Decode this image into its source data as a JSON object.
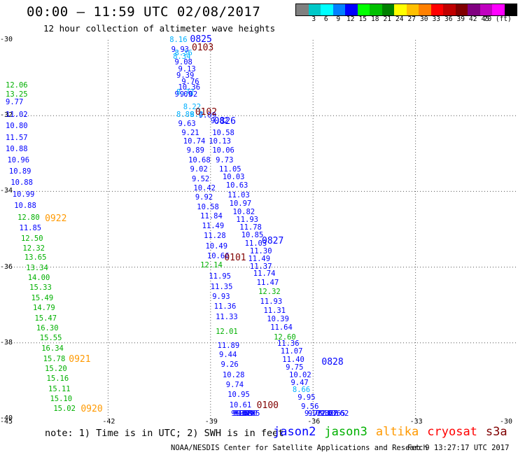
{
  "title": "00:00 – 11:59 UTC 02/08/2017",
  "subtitle": "12 hour collection of altimeter wave heights",
  "colorbar": {
    "colors": [
      "#808080",
      "#00c8c8",
      "#00ffff",
      "#0080ff",
      "#0000ff",
      "#00ff00",
      "#00c000",
      "#008000",
      "#ffff00",
      "#ffc000",
      "#ff8000",
      "#ff0000",
      "#c00000",
      "#800000",
      "#800080",
      "#c000c0",
      "#ff00ff",
      "#000000"
    ],
    "labels": [
      "3",
      "6",
      "9",
      "12",
      "15",
      "18",
      "21",
      "24",
      "27",
      "30",
      "33",
      "36",
      "39",
      "42",
      "45",
      "70 (ft)"
    ]
  },
  "chart_data": {
    "type": "scatter",
    "xlim": [
      -45,
      -30
    ],
    "ylim": [
      -40,
      -30
    ],
    "x_ticks": [
      "-45",
      "-42",
      "-39",
      "-36",
      "-33",
      "-30"
    ],
    "y_ticks": [
      "-30",
      "-32",
      "-34",
      "-36",
      "-38",
      "-40"
    ],
    "grid": true,
    "unit": "ft",
    "series": [
      {
        "name": "jason2",
        "color": "#0000ff",
        "points": [
          {
            "lon": -45.3,
            "lat": -31.65,
            "v": "9.77"
          },
          {
            "lon": -45.2,
            "lat": -31.98,
            "v": "11.02"
          },
          {
            "lon": -45.15,
            "lat": -32.28,
            "v": "10.80"
          },
          {
            "lon": -45.1,
            "lat": -32.58,
            "v": "11.57"
          },
          {
            "lon": -45.0,
            "lat": -32.88,
            "v": "10.88"
          },
          {
            "lon": -44.95,
            "lat": -33.18,
            "v": "10.96"
          },
          {
            "lon": -44.9,
            "lat": -33.48,
            "v": "10.89"
          },
          {
            "lon": -44.85,
            "lat": -33.78,
            "v": "10.88"
          },
          {
            "lon": -44.8,
            "lat": -34.08,
            "v": "10.99"
          },
          {
            "lon": -44.75,
            "lat": -34.38,
            "v": "10.88"
          },
          {
            "lon": -44.6,
            "lat": -34.98,
            "v": "11.85"
          },
          {
            "lon": -40.15,
            "lat": -30.25,
            "v": "9.93"
          },
          {
            "lon": -40.05,
            "lat": -30.6,
            "v": "9.08"
          },
          {
            "lon": -39.95,
            "lat": -30.78,
            "v": "9.13"
          },
          {
            "lon": -40.0,
            "lat": -30.95,
            "v": "9.39"
          },
          {
            "lon": -39.85,
            "lat": -31.1,
            "v": "9.76"
          },
          {
            "lon": -39.95,
            "lat": -31.25,
            "v": "10.36"
          },
          {
            "lon": -39.9,
            "lat": -31.45,
            "v": "9.02"
          },
          {
            "lon": -40.05,
            "lat": -31.45,
            "v": "9.09"
          },
          {
            "lon": -39.95,
            "lat": -32.22,
            "v": "9.63"
          },
          {
            "lon": -39.35,
            "lat": -32.0,
            "v": "9.09"
          },
          {
            "lon": -39.0,
            "lat": -32.15,
            "v": "9.82"
          },
          {
            "lon": -39.85,
            "lat": -32.45,
            "v": "9.21"
          },
          {
            "lon": -38.95,
            "lat": -32.45,
            "v": "10.58"
          },
          {
            "lon": -39.8,
            "lat": -32.68,
            "v": "10.74"
          },
          {
            "lon": -39.05,
            "lat": -32.68,
            "v": "10.13"
          },
          {
            "lon": -39.7,
            "lat": -32.92,
            "v": "9.89"
          },
          {
            "lon": -38.95,
            "lat": -32.92,
            "v": "10.06"
          },
          {
            "lon": -39.65,
            "lat": -33.18,
            "v": "10.68"
          },
          {
            "lon": -38.85,
            "lat": -33.18,
            "v": "9.73"
          },
          {
            "lon": -39.6,
            "lat": -33.42,
            "v": "9.02"
          },
          {
            "lon": -38.75,
            "lat": -33.42,
            "v": "11.05"
          },
          {
            "lon": -39.55,
            "lat": -33.68,
            "v": "9.52"
          },
          {
            "lon": -38.65,
            "lat": -33.62,
            "v": "10.03"
          },
          {
            "lon": -39.5,
            "lat": -33.92,
            "v": "10.42"
          },
          {
            "lon": -38.55,
            "lat": -33.85,
            "v": "10.63"
          },
          {
            "lon": -39.45,
            "lat": -34.15,
            "v": "9.92"
          },
          {
            "lon": -38.5,
            "lat": -34.1,
            "v": "11.03"
          },
          {
            "lon": -38.45,
            "lat": -34.32,
            "v": "10.97"
          },
          {
            "lon": -39.4,
            "lat": -34.42,
            "v": "10.58"
          },
          {
            "lon": -38.35,
            "lat": -34.55,
            "v": "10.82"
          },
          {
            "lon": -38.25,
            "lat": -34.75,
            "v": "11.93"
          },
          {
            "lon": -39.3,
            "lat": -34.65,
            "v": "11.84"
          },
          {
            "lon": -38.15,
            "lat": -34.95,
            "v": "11.78"
          },
          {
            "lon": -39.25,
            "lat": -34.92,
            "v": "11.49"
          },
          {
            "lon": -38.1,
            "lat": -35.15,
            "v": "10.85"
          },
          {
            "lon": -39.2,
            "lat": -35.18,
            "v": "11.28"
          },
          {
            "lon": -38.0,
            "lat": -35.38,
            "v": "11.03"
          },
          {
            "lon": -39.15,
            "lat": -35.45,
            "v": "10.49"
          },
          {
            "lon": -37.85,
            "lat": -35.58,
            "v": "11.30"
          },
          {
            "lon": -39.1,
            "lat": -35.72,
            "v": "10.66"
          },
          {
            "lon": -37.9,
            "lat": -35.78,
            "v": "11.49"
          },
          {
            "lon": -37.85,
            "lat": -35.98,
            "v": "11.37"
          },
          {
            "lon": -39.05,
            "lat": -36.25,
            "v": "11.95"
          },
          {
            "lon": -37.75,
            "lat": -36.18,
            "v": "11.74"
          },
          {
            "lon": -37.65,
            "lat": -36.42,
            "v": "11.47"
          },
          {
            "lon": -39.0,
            "lat": -36.52,
            "v": "11.35"
          },
          {
            "lon": -37.55,
            "lat": -36.92,
            "v": "11.93"
          },
          {
            "lon": -38.95,
            "lat": -36.78,
            "v": "9.93"
          },
          {
            "lon": -37.45,
            "lat": -37.15,
            "v": "11.31"
          },
          {
            "lon": -38.9,
            "lat": -37.05,
            "v": "11.36"
          },
          {
            "lon": -37.35,
            "lat": -37.38,
            "v": "10.39"
          },
          {
            "lon": -38.85,
            "lat": -37.32,
            "v": "11.33"
          },
          {
            "lon": -37.25,
            "lat": -37.6,
            "v": "11.64"
          },
          {
            "lon": -37.05,
            "lat": -38.02,
            "v": "11.36"
          },
          {
            "lon": -38.8,
            "lat": -38.08,
            "v": "11.89"
          },
          {
            "lon": -36.95,
            "lat": -38.22,
            "v": "11.07"
          },
          {
            "lon": -38.75,
            "lat": -38.32,
            "v": "9.44"
          },
          {
            "lon": -36.9,
            "lat": -38.45,
            "v": "11.40"
          },
          {
            "lon": -38.7,
            "lat": -38.58,
            "v": "9.26"
          },
          {
            "lon": -36.8,
            "lat": -38.65,
            "v": "9.75"
          },
          {
            "lon": -38.65,
            "lat": -38.85,
            "v": "10.28"
          },
          {
            "lon": -36.7,
            "lat": -38.85,
            "v": "10.02"
          },
          {
            "lon": -38.55,
            "lat": -39.12,
            "v": "9.74"
          },
          {
            "lon": -36.65,
            "lat": -39.05,
            "v": "9.47"
          },
          {
            "lon": -38.5,
            "lat": -39.38,
            "v": "10.95"
          },
          {
            "lon": -36.45,
            "lat": -39.45,
            "v": "9.95"
          },
          {
            "lon": -38.45,
            "lat": -39.65,
            "v": "10.61"
          },
          {
            "lon": -36.35,
            "lat": -39.68,
            "v": "9.56"
          },
          {
            "lon": -36.25,
            "lat": -39.9,
            "v": "9.78"
          },
          {
            "lon": -38.4,
            "lat": -39.92,
            "v": "9.35"
          },
          {
            "lon": -36.15,
            "lat": -40.12,
            "v": "9.72"
          },
          {
            "lon": -38.35,
            "lat": -40.18,
            "v": "9.37"
          },
          {
            "lon": -36.05,
            "lat": -40.35,
            "v": "10.32"
          },
          {
            "lon": -38.3,
            "lat": -40.45,
            "v": "9.08"
          },
          {
            "lon": -35.9,
            "lat": -40.58,
            "v": "11.18"
          },
          {
            "lon": -38.25,
            "lat": -40.72,
            "v": "9.49"
          },
          {
            "lon": -35.8,
            "lat": -40.82,
            "v": "9.67"
          },
          {
            "lon": -38.2,
            "lat": -40.98,
            "v": "10.05"
          },
          {
            "lon": -35.7,
            "lat": -41.05,
            "v": "10.65"
          },
          {
            "lon": -38.15,
            "lat": -41.25,
            "v": "9.90"
          },
          {
            "lon": -35.6,
            "lat": -41.28,
            "v": "10.62"
          }
        ]
      },
      {
        "name": "jason3",
        "color": "#00b000",
        "points": [
          {
            "lon": -45.35,
            "lat": -31.2,
            "v": "12.06"
          },
          {
            "lon": -45.3,
            "lat": -31.45,
            "v": "13.25"
          },
          {
            "lon": -44.65,
            "lat": -34.7,
            "v": "12.80"
          },
          {
            "lon": -44.55,
            "lat": -35.25,
            "v": "12.50"
          },
          {
            "lon": -44.5,
            "lat": -35.5,
            "v": "12.32"
          },
          {
            "lon": -44.45,
            "lat": -35.75,
            "v": "13.65"
          },
          {
            "lon": -44.4,
            "lat": -36.02,
            "v": "13.34"
          },
          {
            "lon": -44.35,
            "lat": -36.28,
            "v": "14.00"
          },
          {
            "lon": -44.3,
            "lat": -36.55,
            "v": "15.33"
          },
          {
            "lon": -44.25,
            "lat": -36.82,
            "v": "15.49"
          },
          {
            "lon": -44.2,
            "lat": -37.08,
            "v": "14.79"
          },
          {
            "lon": -44.15,
            "lat": -37.35,
            "v": "15.47"
          },
          {
            "lon": -44.1,
            "lat": -37.62,
            "v": "16.30"
          },
          {
            "lon": -44.0,
            "lat": -37.88,
            "v": "15.55"
          },
          {
            "lon": -43.95,
            "lat": -38.15,
            "v": "16.34"
          },
          {
            "lon": -43.9,
            "lat": -38.42,
            "v": "15.78"
          },
          {
            "lon": -43.85,
            "lat": -38.68,
            "v": "15.20"
          },
          {
            "lon": -43.8,
            "lat": -38.95,
            "v": "15.16"
          },
          {
            "lon": -43.75,
            "lat": -39.22,
            "v": "15.11"
          },
          {
            "lon": -43.7,
            "lat": -39.48,
            "v": "15.10"
          },
          {
            "lon": -43.6,
            "lat": -39.75,
            "v": "15.02"
          },
          {
            "lon": -39.3,
            "lat": -35.95,
            "v": "12.14"
          },
          {
            "lon": -38.85,
            "lat": -37.7,
            "v": "12.01"
          },
          {
            "lon": -37.6,
            "lat": -36.65,
            "v": "12.32"
          },
          {
            "lon": -37.15,
            "lat": -37.85,
            "v": "12.60"
          }
        ]
      },
      {
        "name": "altika",
        "color": "#ff9900",
        "points": []
      },
      {
        "name": "cryosat",
        "color": "#ff0000",
        "points": []
      },
      {
        "name": "s3a",
        "color": "#800000",
        "points": []
      },
      {
        "name": "",
        "color": "#00b0ff",
        "points": [
          {
            "lon": -40.2,
            "lat": -30.0,
            "v": "8.16"
          },
          {
            "lon": -40.05,
            "lat": -30.35,
            "v": "8.36"
          },
          {
            "lon": -40.1,
            "lat": -30.45,
            "v": "8.34"
          },
          {
            "lon": -40.0,
            "lat": -31.38,
            "v": "8.72"
          },
          {
            "lon": -39.8,
            "lat": -31.78,
            "v": "8.22"
          },
          {
            "lon": -40.0,
            "lat": -31.98,
            "v": "8.89"
          },
          {
            "lon": -39.6,
            "lat": -31.98,
            "v": "8.8"
          },
          {
            "lon": -36.6,
            "lat": -39.25,
            "v": "8.66"
          }
        ]
      }
    ],
    "pass_labels": [
      {
        "lon": -39.6,
        "lat": -29.95,
        "text": "0825",
        "color": "#0000ff"
      },
      {
        "lon": -39.55,
        "lat": -30.2,
        "text": "0103",
        "color": "#800000"
      },
      {
        "lon": -39.45,
        "lat": -31.9,
        "text": "0102",
        "color": "#800000"
      },
      {
        "lon": -38.9,
        "lat": -32.15,
        "text": "0826",
        "color": "#0000ff"
      },
      {
        "lon": -37.5,
        "lat": -35.3,
        "text": "0827",
        "color": "#0000ff"
      },
      {
        "lon": -38.6,
        "lat": -35.75,
        "text": "0101",
        "color": "#800000"
      },
      {
        "lon": -43.85,
        "lat": -34.72,
        "text": "0922",
        "color": "#ff9900"
      },
      {
        "lon": -35.75,
        "lat": -38.5,
        "text": "0828",
        "color": "#0000ff"
      },
      {
        "lon": -37.65,
        "lat": -39.65,
        "text": "0100",
        "color": "#800000"
      },
      {
        "lon": -43.15,
        "lat": -38.42,
        "text": "0921",
        "color": "#ff9900"
      },
      {
        "lon": -42.8,
        "lat": -39.75,
        "text": "0920",
        "color": "#ff9900"
      }
    ]
  },
  "note": "note: 1) Time is in UTC; 2) SWH is in feet",
  "legend": [
    {
      "name": "jason2",
      "color": "#0000ff"
    },
    {
      "name": "jason3",
      "color": "#00b000"
    },
    {
      "name": "altika",
      "color": "#ff9900"
    },
    {
      "name": "cryosat",
      "color": "#ff0000"
    },
    {
      "name": "s3a",
      "color": "#800000"
    }
  ],
  "credit": "NOAA/NESDIS Center for Satellite Applications and Research",
  "timestamp": "Feb  9 13:27:17 UTC 2017"
}
